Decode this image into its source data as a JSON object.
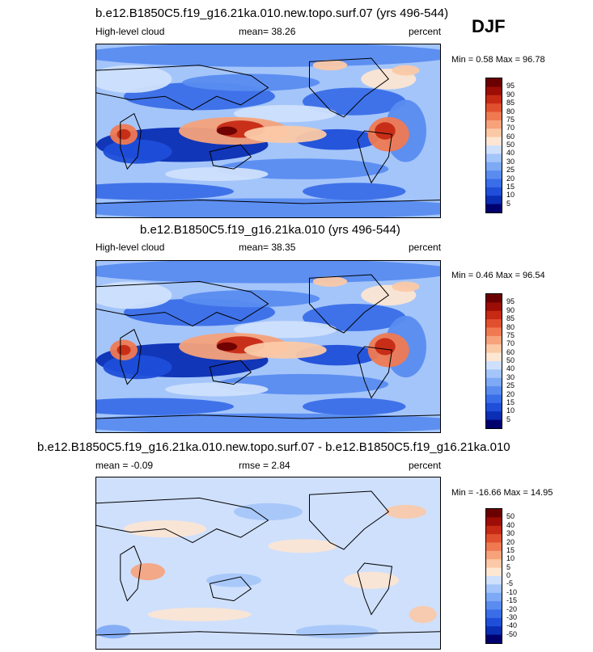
{
  "season": "DJF",
  "panels": [
    {
      "title": "b.e12.B1850C5.f19_g16.21ka.010.new.topo.surf.07 (yrs 496-544)",
      "left_label": "High-level cloud",
      "center_label": "mean=  38.26",
      "right_label": "percent",
      "minmax": "Min =  0.58 Max =  96.78",
      "variant": "cloud",
      "colorbar_labels": [
        "95",
        "90",
        "85",
        "80",
        "75",
        "70",
        "60",
        "50",
        "40",
        "30",
        "25",
        "20",
        "15",
        "10",
        "5"
      ]
    },
    {
      "title": "b.e12.B1850C5.f19_g16.21ka.010 (yrs 496-544)",
      "left_label": "High-level cloud",
      "center_label": "mean=  38.35",
      "right_label": "percent",
      "minmax": "Min =  0.46 Max =  96.54",
      "variant": "cloud",
      "colorbar_labels": [
        "95",
        "90",
        "85",
        "80",
        "75",
        "70",
        "60",
        "50",
        "40",
        "30",
        "25",
        "20",
        "15",
        "10",
        "5"
      ]
    },
    {
      "title": "b.e12.B1850C5.f19_g16.21ka.010.new.topo.surf.07 - b.e12.B1850C5.f19_g16.21ka.010",
      "left_label": "mean =  -0.09",
      "center_label": "rmse =   2.84",
      "right_label": "percent",
      "minmax": "Min = -16.66 Max =  14.95",
      "variant": "diff",
      "colorbar_labels": [
        "50",
        "40",
        "30",
        "20",
        "15",
        "10",
        "5",
        "0",
        "-5",
        "-10",
        "-15",
        "-20",
        "-30",
        "-40",
        "-50"
      ]
    }
  ],
  "colors": {
    "cloud_scale": [
      "#00006e",
      "#0a2eb4",
      "#1f4fd9",
      "#3a6ee8",
      "#5a8cf0",
      "#7da9f5",
      "#a4c5fa",
      "#cfe0fc",
      "#fde6d2",
      "#fbc9a6",
      "#f6a27a",
      "#ef7a52",
      "#e1502e",
      "#c62a14",
      "#9c0d05",
      "#6b0000"
    ],
    "diff_scale": [
      "#00006e",
      "#0a2eb4",
      "#1f4fd9",
      "#3a6ee8",
      "#5a8cf0",
      "#7da9f5",
      "#a4c5fa",
      "#cfe0fc",
      "#fde6d2",
      "#fbc9a6",
      "#f6a27a",
      "#ef7a52",
      "#e1502e",
      "#c62a14",
      "#9c0d05",
      "#6b0000"
    ]
  }
}
